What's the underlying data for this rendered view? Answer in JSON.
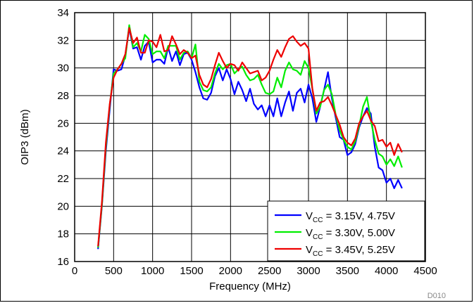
{
  "chart_data": {
    "type": "line",
    "title": "",
    "xlabel": "Frequency (MHz)",
    "ylabel": "OIP3 (dBm)",
    "xlim": [
      0,
      4500
    ],
    "ylim": [
      16,
      34
    ],
    "xticks": [
      "0",
      "500",
      "1000",
      "1500",
      "2000",
      "2500",
      "3000",
      "3500",
      "4000",
      "4500"
    ],
    "yticks": [
      "16",
      "18",
      "20",
      "22",
      "24",
      "26",
      "28",
      "30",
      "32",
      "34"
    ],
    "grid": true,
    "legend_position": "bottom-right",
    "figure_id": "D010",
    "series": [
      {
        "name_prefix": "V",
        "name_sub": "CC",
        "name_rest": " = 3.15V, 4.75V",
        "color": "#0000ff",
        "x": [
          300,
          350,
          400,
          450,
          500,
          550,
          600,
          650,
          700,
          750,
          800,
          850,
          900,
          950,
          1000,
          1050,
          1100,
          1150,
          1200,
          1250,
          1300,
          1350,
          1400,
          1450,
          1500,
          1550,
          1600,
          1650,
          1700,
          1750,
          1800,
          1850,
          1900,
          1950,
          2000,
          2050,
          2100,
          2150,
          2200,
          2250,
          2300,
          2350,
          2400,
          2450,
          2500,
          2550,
          2600,
          2650,
          2700,
          2750,
          2800,
          2850,
          2900,
          2950,
          3000,
          3050,
          3100,
          3150,
          3200,
          3250,
          3300,
          3350,
          3400,
          3450,
          3500,
          3550,
          3600,
          3650,
          3700,
          3750,
          3800,
          3850,
          3900,
          3950,
          4000,
          4050,
          4100,
          4150,
          4200
        ],
        "values": [
          16.9,
          20.0,
          24.0,
          27.0,
          29.9,
          29.8,
          29.9,
          30.9,
          32.9,
          31.4,
          31.5,
          30.6,
          31.6,
          31.9,
          30.4,
          30.6,
          30.6,
          30.3,
          31.5,
          30.5,
          31.2,
          30.2,
          31.0,
          31.1,
          30.6,
          29.7,
          28.6,
          27.8,
          27.7,
          28.2,
          29.4,
          30.0,
          29.1,
          29.9,
          29.2,
          28.1,
          29.0,
          28.4,
          27.6,
          28.5,
          27.4,
          27.0,
          27.3,
          26.5,
          27.3,
          26.5,
          27.8,
          26.5,
          27.5,
          28.3,
          26.9,
          28.2,
          28.5,
          27.5,
          28.8,
          27.8,
          26.1,
          27.2,
          28.4,
          29.7,
          27.8,
          26.4,
          25.0,
          24.8,
          23.7,
          23.9,
          24.5,
          25.7,
          26.5,
          27.1,
          26.7,
          24.3,
          22.8,
          22.6,
          21.7,
          22.0,
          21.3,
          21.9,
          21.3
        ]
      },
      {
        "name_prefix": "V",
        "name_sub": "CC",
        "name_rest": " = 3.30V, 5.00V",
        "color": "#00ee00",
        "x": [
          300,
          350,
          400,
          450,
          500,
          550,
          600,
          650,
          700,
          750,
          800,
          850,
          900,
          950,
          1000,
          1050,
          1100,
          1150,
          1200,
          1250,
          1300,
          1350,
          1400,
          1450,
          1500,
          1550,
          1600,
          1650,
          1700,
          1750,
          1800,
          1850,
          1900,
          1950,
          2000,
          2050,
          2100,
          2150,
          2200,
          2250,
          2300,
          2350,
          2400,
          2450,
          2500,
          2550,
          2600,
          2650,
          2700,
          2750,
          2800,
          2850,
          2900,
          2950,
          3000,
          3050,
          3100,
          3150,
          3200,
          3250,
          3300,
          3350,
          3400,
          3450,
          3500,
          3550,
          3600,
          3650,
          3700,
          3750,
          3800,
          3850,
          3900,
          3950,
          4000,
          4050,
          4100,
          4150,
          4200
        ],
        "values": [
          17.0,
          20.1,
          24.3,
          27.3,
          29.6,
          29.9,
          30.3,
          30.7,
          33.1,
          31.5,
          31.8,
          31.2,
          32.4,
          32.1,
          31.0,
          31.2,
          31.2,
          30.7,
          31.6,
          31.6,
          31.6,
          30.6,
          31.1,
          31.2,
          30.7,
          31.7,
          29.0,
          28.4,
          28.3,
          28.6,
          29.6,
          30.3,
          29.9,
          30.2,
          30.3,
          29.6,
          29.9,
          30.1,
          29.5,
          29.1,
          29.2,
          29.5,
          28.8,
          28.2,
          28.1,
          28.3,
          29.3,
          28.6,
          29.8,
          30.4,
          29.9,
          29.8,
          29.5,
          30.5,
          30.0,
          28.5,
          26.7,
          27.2,
          28.4,
          28.8,
          28.1,
          26.6,
          25.5,
          24.8,
          24.3,
          24.1,
          24.7,
          25.8,
          27.2,
          27.9,
          26.2,
          24.8,
          23.8,
          23.6,
          23.0,
          23.4,
          22.9,
          23.6,
          22.8
        ]
      },
      {
        "name_prefix": "V",
        "name_sub": "CC",
        "name_rest": " = 3.45V, 5.25V",
        "color": "#ee0000",
        "x": [
          300,
          350,
          400,
          450,
          500,
          550,
          600,
          650,
          700,
          750,
          800,
          850,
          900,
          950,
          1000,
          1050,
          1100,
          1150,
          1200,
          1250,
          1300,
          1350,
          1400,
          1450,
          1500,
          1550,
          1600,
          1650,
          1700,
          1750,
          1800,
          1850,
          1900,
          1950,
          2000,
          2050,
          2100,
          2150,
          2200,
          2250,
          2300,
          2350,
          2400,
          2450,
          2500,
          2550,
          2600,
          2650,
          2700,
          2750,
          2800,
          2850,
          2900,
          2950,
          3000,
          3050,
          3100,
          3150,
          3200,
          3250,
          3300,
          3350,
          3400,
          3450,
          3500,
          3550,
          3600,
          3650,
          3700,
          3750,
          3800,
          3850,
          3900,
          3950,
          4000,
          4050,
          4100,
          4150,
          4200
        ],
        "values": [
          17.1,
          20.3,
          24.6,
          27.4,
          29.3,
          29.9,
          30.3,
          31.0,
          32.9,
          31.8,
          32.2,
          31.1,
          31.1,
          32.0,
          31.9,
          31.5,
          32.4,
          31.2,
          31.3,
          32.3,
          31.7,
          31.0,
          31.3,
          31.1,
          30.7,
          30.9,
          29.5,
          28.8,
          28.6,
          29.2,
          30.2,
          31.1,
          30.5,
          30.0,
          30.3,
          30.2,
          29.8,
          30.4,
          30.0,
          29.6,
          29.7,
          29.8,
          29.1,
          29.3,
          29.8,
          30.6,
          31.3,
          30.8,
          31.5,
          32.1,
          32.3,
          31.9,
          31.6,
          31.8,
          31.4,
          28.5,
          26.9,
          27.5,
          27.6,
          27.9,
          27.3,
          26.6,
          25.9,
          25.0,
          24.6,
          24.4,
          24.9,
          26.0,
          26.5,
          26.9,
          26.2,
          25.8,
          24.7,
          24.8,
          24.3,
          24.6,
          23.7,
          24.5,
          23.9
        ]
      }
    ]
  }
}
